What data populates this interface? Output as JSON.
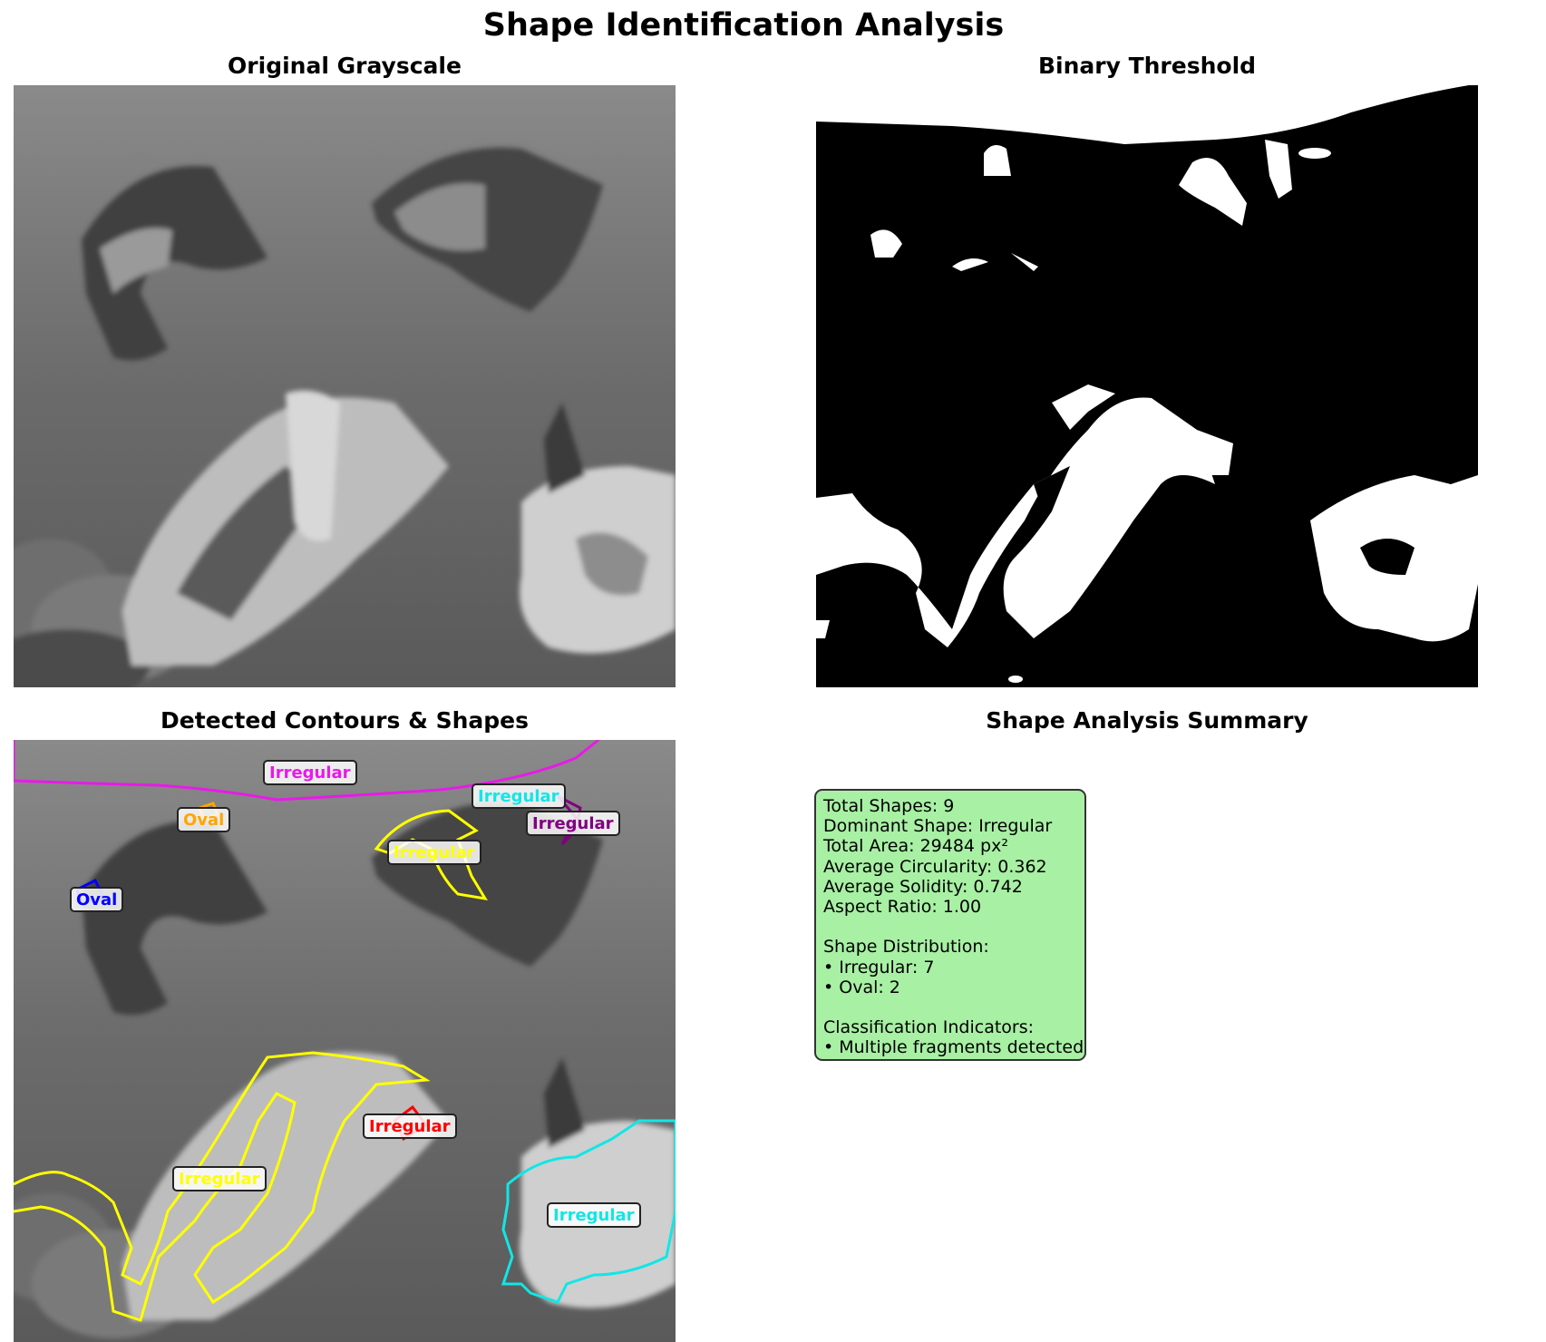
{
  "figure": {
    "title": "Shape Identification Analysis",
    "panels": {
      "grayscale_title": "Original Grayscale",
      "binary_title": "Binary Threshold",
      "contours_title": "Detected Contours & Shapes",
      "summary_title": "Shape Analysis Summary"
    }
  },
  "labels": [
    {
      "text": "Irregular",
      "color": "#e81ae8"
    },
    {
      "text": "Irregular",
      "color": "#12e6e6"
    },
    {
      "text": "Irregular",
      "color": "#800080"
    },
    {
      "text": "Oval",
      "color": "#ffa500"
    },
    {
      "text": "Irregular",
      "color": "#ffff00"
    },
    {
      "text": "Oval",
      "color": "#0000ff"
    },
    {
      "text": "Irregular",
      "color": "#ff0000"
    },
    {
      "text": "Irregular",
      "color": "#ffff00"
    },
    {
      "text": "Irregular",
      "color": "#12e6e6"
    }
  ],
  "summary": {
    "total_shapes": "Total Shapes: 9",
    "dominant_shape": "Dominant Shape: Irregular",
    "total_area": "Total Area: 29484 px²",
    "avg_circularity": "Average Circularity: 0.362",
    "avg_solidity": "Average Solidity: 0.742",
    "aspect_ratio": "Aspect Ratio: 1.00",
    "distribution_header": "Shape Distribution:",
    "dist_irregular": "• Irregular: 7",
    "dist_oval": "• Oval: 2",
    "indicators_header": "Classification Indicators:",
    "indicator_1": "• Multiple fragments detected"
  },
  "colors": {
    "summary_bg": "#a8f0a4",
    "magenta": "#e81ae8",
    "cyan": "#12e6e6",
    "purple": "#800080",
    "orange": "#ffa500",
    "yellow": "#ffff00",
    "blue": "#0000ff",
    "red": "#ff0000"
  }
}
